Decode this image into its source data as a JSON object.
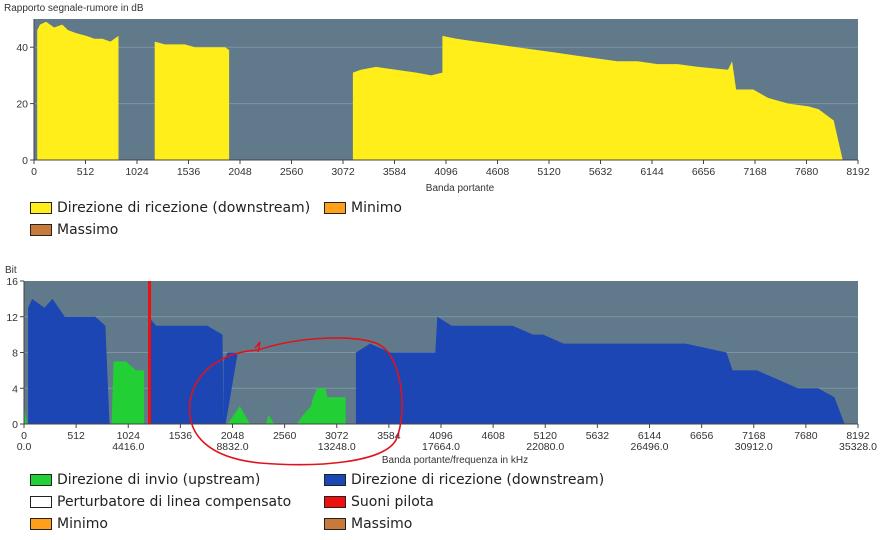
{
  "chart_data": [
    {
      "type": "area",
      "title": "Rapporto segnale-rumore in dB",
      "xlabel": "Banda portante",
      "ylabel": "",
      "xlim": [
        0,
        8192
      ],
      "ylim": [
        0,
        50
      ],
      "x_ticks": [
        "0",
        "512",
        "1024",
        "1536",
        "2048",
        "2560",
        "3072",
        "3584",
        "4096",
        "4608",
        "5120",
        "5632",
        "6144",
        "6656",
        "7168",
        "7680",
        "8192"
      ],
      "y_ticks": [
        "0",
        "20",
        "40"
      ],
      "grid": true,
      "legend": "bottom",
      "series": [
        {
          "name": "Direzione di ricezione (downstream)",
          "color": "#ffee1a",
          "points": [
            [
              32,
              0
            ],
            [
              32,
              46
            ],
            [
              60,
              48
            ],
            [
              120,
              49
            ],
            [
              200,
              47
            ],
            [
              280,
              48
            ],
            [
              340,
              46
            ],
            [
              420,
              45
            ],
            [
              520,
              44
            ],
            [
              600,
              43
            ],
            [
              680,
              43
            ],
            [
              760,
              42
            ],
            [
              840,
              44
            ],
            [
              840,
              0
            ],
            [
              1200,
              0
            ],
            [
              1200,
              42
            ],
            [
              1300,
              41
            ],
            [
              1400,
              41
            ],
            [
              1500,
              41
            ],
            [
              1600,
              40
            ],
            [
              1700,
              40
            ],
            [
              1800,
              40
            ],
            [
              1900,
              40
            ],
            [
              1940,
              39
            ],
            [
              1940,
              0
            ],
            [
              3170,
              0
            ],
            [
              3170,
              31
            ],
            [
              3250,
              32
            ],
            [
              3400,
              33
            ],
            [
              3600,
              32
            ],
            [
              3800,
              31
            ],
            [
              3950,
              30
            ],
            [
              4060,
              31
            ],
            [
              4060,
              44
            ],
            [
              4200,
              43
            ],
            [
              4400,
              42
            ],
            [
              4600,
              41
            ],
            [
              4800,
              40
            ],
            [
              5000,
              39
            ],
            [
              5200,
              38
            ],
            [
              5400,
              37
            ],
            [
              5600,
              36
            ],
            [
              5800,
              35
            ],
            [
              6000,
              35
            ],
            [
              6200,
              34
            ],
            [
              6400,
              34
            ],
            [
              6600,
              33
            ],
            [
              6900,
              32
            ],
            [
              6940,
              35
            ],
            [
              6980,
              25
            ],
            [
              7150,
              25
            ],
            [
              7300,
              22
            ],
            [
              7500,
              20
            ],
            [
              7700,
              19
            ],
            [
              7800,
              18
            ],
            [
              7950,
              14
            ],
            [
              8040,
              0
            ]
          ]
        },
        {
          "name": "Minimo",
          "color": "#ff9f1a",
          "points": []
        },
        {
          "name": "Massimo",
          "color": "#c87a3a",
          "points": []
        }
      ]
    },
    {
      "type": "area",
      "title": "Bit",
      "xlabel": "Banda portante/frequenza in kHz",
      "ylabel": "",
      "xlim": [
        0,
        8192
      ],
      "ylim": [
        0,
        16
      ],
      "x_ticks": [
        "0",
        "512",
        "1024",
        "1536",
        "2048",
        "2560",
        "3072",
        "3584",
        "4096",
        "4608",
        "5120",
        "5632",
        "6144",
        "6656",
        "7168",
        "7680",
        "8192"
      ],
      "x_ticks_freq": [
        "0.0",
        "4416.0",
        "8832.0",
        "13248.0",
        "17664.0",
        "22080.0",
        "26496.0",
        "30912.0",
        "35328.0"
      ],
      "y_ticks": [
        "0",
        "4",
        "8",
        "12",
        "16"
      ],
      "grid": true,
      "legend": "bottom",
      "series": [
        {
          "name": "Direzione di ricezione (downstream)",
          "color": "#1b46b4",
          "points": [
            [
              40,
              0
            ],
            [
              40,
              13
            ],
            [
              80,
              14
            ],
            [
              200,
              13
            ],
            [
              280,
              14
            ],
            [
              340,
              13
            ],
            [
              400,
              12
            ],
            [
              700,
              12
            ],
            [
              800,
              11
            ],
            [
              840,
              0
            ],
            [
              1220,
              0
            ],
            [
              1220,
              12
            ],
            [
              1300,
              11
            ],
            [
              1500,
              11
            ],
            [
              1800,
              11
            ],
            [
              1950,
              10
            ],
            [
              1960,
              0
            ],
            [
              1960,
              7
            ],
            [
              2000,
              8
            ],
            [
              2100,
              8
            ],
            [
              1980,
              0
            ],
            [
              3260,
              0
            ],
            [
              3260,
              8
            ],
            [
              3400,
              9
            ],
            [
              3600,
              8
            ],
            [
              4040,
              8
            ],
            [
              4060,
              12
            ],
            [
              4200,
              11
            ],
            [
              4600,
              11
            ],
            [
              4800,
              11
            ],
            [
              5000,
              10
            ],
            [
              5100,
              10
            ],
            [
              5300,
              9
            ],
            [
              6000,
              9
            ],
            [
              6500,
              9
            ],
            [
              6900,
              8
            ],
            [
              6960,
              6
            ],
            [
              7200,
              6
            ],
            [
              7400,
              5
            ],
            [
              7600,
              4
            ],
            [
              7800,
              4
            ],
            [
              7960,
              3
            ],
            [
              8060,
              0
            ]
          ]
        },
        {
          "name": "Direzione di invio (upstream)",
          "color": "#22d035",
          "points": [
            [
              0,
              0
            ],
            [
              0,
              2
            ],
            [
              30,
              0
            ],
            [
              860,
              0
            ],
            [
              880,
              7
            ],
            [
              1000,
              7
            ],
            [
              1100,
              6
            ],
            [
              1180,
              6
            ],
            [
              1180,
              0
            ],
            [
              2000,
              0
            ],
            [
              2060,
              1
            ],
            [
              2120,
              2
            ],
            [
              2220,
              0
            ],
            [
              2380,
              0
            ],
            [
              2400,
              1
            ],
            [
              2460,
              0
            ],
            [
              2680,
              0
            ],
            [
              2740,
              1
            ],
            [
              2820,
              2
            ],
            [
              2840,
              3
            ],
            [
              2880,
              4
            ],
            [
              2960,
              4
            ],
            [
              2980,
              3
            ],
            [
              3160,
              3
            ],
            [
              3160,
              0
            ]
          ]
        },
        {
          "name": "Perturbatore di linea compensato",
          "color": "#ffffff",
          "points": []
        },
        {
          "name": "Suoni pilota",
          "color": "#ee0f0f",
          "points": [
            [
              1233,
              0
            ],
            [
              1233,
              16
            ]
          ]
        },
        {
          "name": "Minimo",
          "color": "#ff9f1a",
          "points": []
        },
        {
          "name": "Massimo",
          "color": "#c87a3a",
          "points": []
        }
      ]
    }
  ],
  "legend1": [
    {
      "label": "Direzione di ricezione (downstream)",
      "color": "#ffee1a"
    },
    {
      "label": "Minimo",
      "color": "#ff9f1a"
    },
    {
      "label": "Massimo",
      "color": "#c87a3a"
    }
  ],
  "legend2": [
    {
      "label": "Direzione di invio (upstream)",
      "color": "#22d035"
    },
    {
      "label": "Direzione di ricezione (downstream)",
      "color": "#1b46b4"
    },
    {
      "label": "Perturbatore di linea compensato",
      "color": "#ffffff"
    },
    {
      "label": "Suoni pilota",
      "color": "#ee0f0f"
    },
    {
      "label": "Minimo",
      "color": "#ff9f1a"
    },
    {
      "label": "Massimo",
      "color": "#c87a3a"
    }
  ]
}
